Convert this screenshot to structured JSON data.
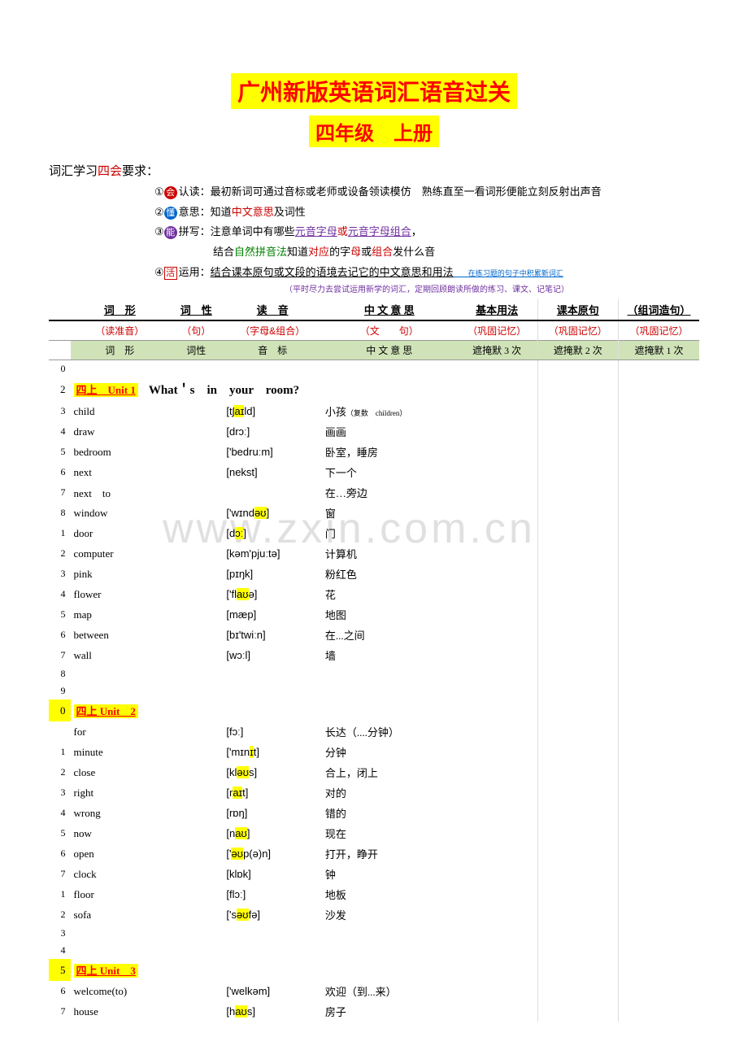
{
  "title": "广州新版英语词汇语音过关",
  "subtitle": "四年级　上册",
  "intro": {
    "prefix": "词汇学习",
    "highlight": "四会",
    "suffix": "要求："
  },
  "rules": [
    {
      "num": "①",
      "icon": "会",
      "iconClass": "ic-red",
      "label": "认读：",
      "text": "最初新词可通过音标或老师或设备领读模仿　熟练直至一看词形便能立刻反射出声音"
    },
    {
      "num": "②",
      "icon": "懂",
      "iconClass": "ic-blue",
      "label": "意思：",
      "text_parts": [
        {
          "t": "知道",
          "c": ""
        },
        {
          "t": "中文意思",
          "c": "red"
        },
        {
          "t": "及",
          "c": ""
        },
        {
          "t": "词性",
          "c": ""
        }
      ]
    },
    {
      "num": "③",
      "icon": "能",
      "iconClass": "ic-purple",
      "label": "拼写：",
      "text_parts": [
        {
          "t": "注意单词中有哪些",
          "c": ""
        },
        {
          "t": "元音字母",
          "c": "purple u"
        },
        {
          "t": "或",
          "c": "red"
        },
        {
          "t": "元音字母组合",
          "c": "purple u"
        },
        {
          "t": "，",
          "c": ""
        }
      ]
    },
    {
      "num": "",
      "icon": "",
      "label": "",
      "indent": true,
      "text_parts": [
        {
          "t": "结合",
          "c": ""
        },
        {
          "t": "自然拼音法",
          "c": "green"
        },
        {
          "t": "知道",
          "c": ""
        },
        {
          "t": "对应",
          "c": "red"
        },
        {
          "t": "的字",
          "c": ""
        },
        {
          "t": "母",
          "c": "red"
        },
        {
          "t": "或",
          "c": ""
        },
        {
          "t": "组合",
          "c": "red"
        },
        {
          "t": "发什么音",
          "c": ""
        }
      ]
    },
    {
      "num": "④",
      "icon": "活",
      "iconClass": "ic-box",
      "label": "运用：",
      "text_parts": [
        {
          "t": "结合课本原句或文段的语境去记它的中文意思和用法",
          "c": "u"
        },
        {
          "t": "　　在练习题的句子中积累新词汇",
          "c": "tiny blue"
        }
      ]
    }
  ],
  "purple_note": "（平时尽力去尝试运用新学的词汇，定期回顾朗读所做的练习、课文、记笔记）",
  "headers1": [
    "词　形",
    "词　性",
    "读　音",
    "中 文 意 思",
    "基本用法",
    "课本原句",
    "（组词造句）"
  ],
  "headers2": [
    "（读准音）",
    "（句）",
    "（字母&组合）",
    "（文　　句）",
    "（巩固记忆）",
    "（巩固记忆）",
    "（巩固记忆）"
  ],
  "headers3": [
    "词　形",
    "词性",
    "音　标",
    "中 文 意 思",
    "遮掩默 3 次",
    "遮掩默 2 次",
    "遮掩默 1 次"
  ],
  "unit1": {
    "label": "四上　Unit 1",
    "question": "What＇s　in　your　room?"
  },
  "unit2": {
    "label": "四上 Unit　2"
  },
  "unit3": {
    "label": "四上 Unit　3"
  },
  "rows": [
    {
      "n": "0",
      "w": "",
      "p": "",
      "m": ""
    },
    {
      "n": "2",
      "unit": 1
    },
    {
      "n": "3",
      "w": "child",
      "p": "[tʃ|aɪ|ld]",
      "m": "小孩",
      "note": "（复数　children）"
    },
    {
      "n": "4",
      "w": "draw",
      "p": "[drɔː]",
      "m": "画画"
    },
    {
      "n": "5",
      "w": "bedroom",
      "p": "['bedruːm]",
      "m": "卧室，睡房"
    },
    {
      "n": "6",
      "w": "next",
      "p": "[nekst]",
      "m": "下一个"
    },
    {
      "n": "7",
      "w": "next　to",
      "p": "",
      "m": "在…旁边"
    },
    {
      "n": "8",
      "w": "window",
      "p": "['wɪnd|əʊ|]",
      "m": "窗"
    },
    {
      "n": "1",
      "w": "door",
      "p": "[d|ɔː|]",
      "m": "门"
    },
    {
      "n": "2",
      "w": "computer",
      "p": "[kəm'pjuːtə]",
      "m": "计算机"
    },
    {
      "n": "3",
      "w": "pink",
      "p": "[pɪŋk]",
      "m": "粉红色"
    },
    {
      "n": "4",
      "w": "flower",
      "p": "['fl|aʊ|ə]",
      "m": "花"
    },
    {
      "n": "5",
      "w": "map",
      "p": "[mæp]",
      "m": "地图"
    },
    {
      "n": "6",
      "w": "between",
      "p": "[bɪ'twiːn]",
      "m": "在...之间"
    },
    {
      "n": "7",
      "w": "wall",
      "p": "[wɔːl]",
      "m": "墙"
    },
    {
      "n": "8",
      "w": "",
      "p": "",
      "m": ""
    },
    {
      "n": "9",
      "w": "",
      "p": "",
      "m": ""
    },
    {
      "n": "0",
      "unit": 2,
      "hlnum": true
    },
    {
      "n": "",
      "w": "for",
      "p": "[fɔː]",
      "m": "长达（....分钟）"
    },
    {
      "n": "1",
      "w": "minute",
      "p": "['mɪn|ɪ|t]",
      "m": "分钟"
    },
    {
      "n": "2",
      "w": "close",
      "p": "[kl|əʊ|s]",
      "m": "合上，闭上"
    },
    {
      "n": "3",
      "w": "right",
      "p": "[r|aɪ|t]",
      "m": "对的"
    },
    {
      "n": "4",
      "w": "wrong",
      "p": "[rɒŋ]",
      "m": "错的"
    },
    {
      "n": "5",
      "w": "now",
      "p": "[n|aʊ|]",
      "m": "现在"
    },
    {
      "n": "6",
      "w": "open",
      "p": "['|əʊ|p(ə)n]",
      "m": "打开，睁开"
    },
    {
      "n": "7",
      "w": "clock",
      "p": "[klɒk]",
      "m": "钟"
    },
    {
      "n": "1",
      "w": "floor",
      "p": "[flɔː]",
      "m": "地板"
    },
    {
      "n": "2",
      "w": "sofa",
      "p": "['s|əʊ|fə]",
      "m": "沙发"
    },
    {
      "n": "3",
      "w": "",
      "p": "",
      "m": ""
    },
    {
      "n": "4",
      "w": "",
      "p": "",
      "m": ""
    },
    {
      "n": "5",
      "unit": 3,
      "hlnum": true
    },
    {
      "n": "6",
      "w": "welcome(to)",
      "p": "['welkəm]",
      "m": "欢迎（到...来）"
    },
    {
      "n": "7",
      "w": "house",
      "p": "[h|aʊ|s]",
      "m": "房子"
    }
  ]
}
